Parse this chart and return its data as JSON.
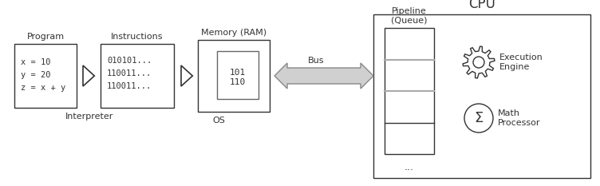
{
  "bg_color": "#ffffff",
  "title": "CPU",
  "title_fontsize": 12,
  "program_label": "Program",
  "program_code": [
    "x = 10",
    "y = 20",
    "z = x + y"
  ],
  "instructions_label": "Instructions",
  "instructions_code": [
    "010101...",
    "110011...",
    "110011..."
  ],
  "memory_label": "Memory (RAM)",
  "memory_inner": [
    "101",
    "110"
  ],
  "bus_label": "Bus",
  "interpreter_label": "Interpreter",
  "os_label": "OS",
  "pipeline_label": "Pipeline\n(Queue)",
  "execution_label": "Execution\nEngine",
  "math_label": "Math\nProcessor",
  "dots_label": "...",
  "line_color": "#333333",
  "fill_color": "#ffffff",
  "gray_color": "#999999",
  "arrow_fill": "#d0d0d0",
  "arrow_edge": "#888888",
  "font_size": 8,
  "small_font_size": 7.5,
  "figw": 7.52,
  "figh": 2.33,
  "dpi": 100
}
